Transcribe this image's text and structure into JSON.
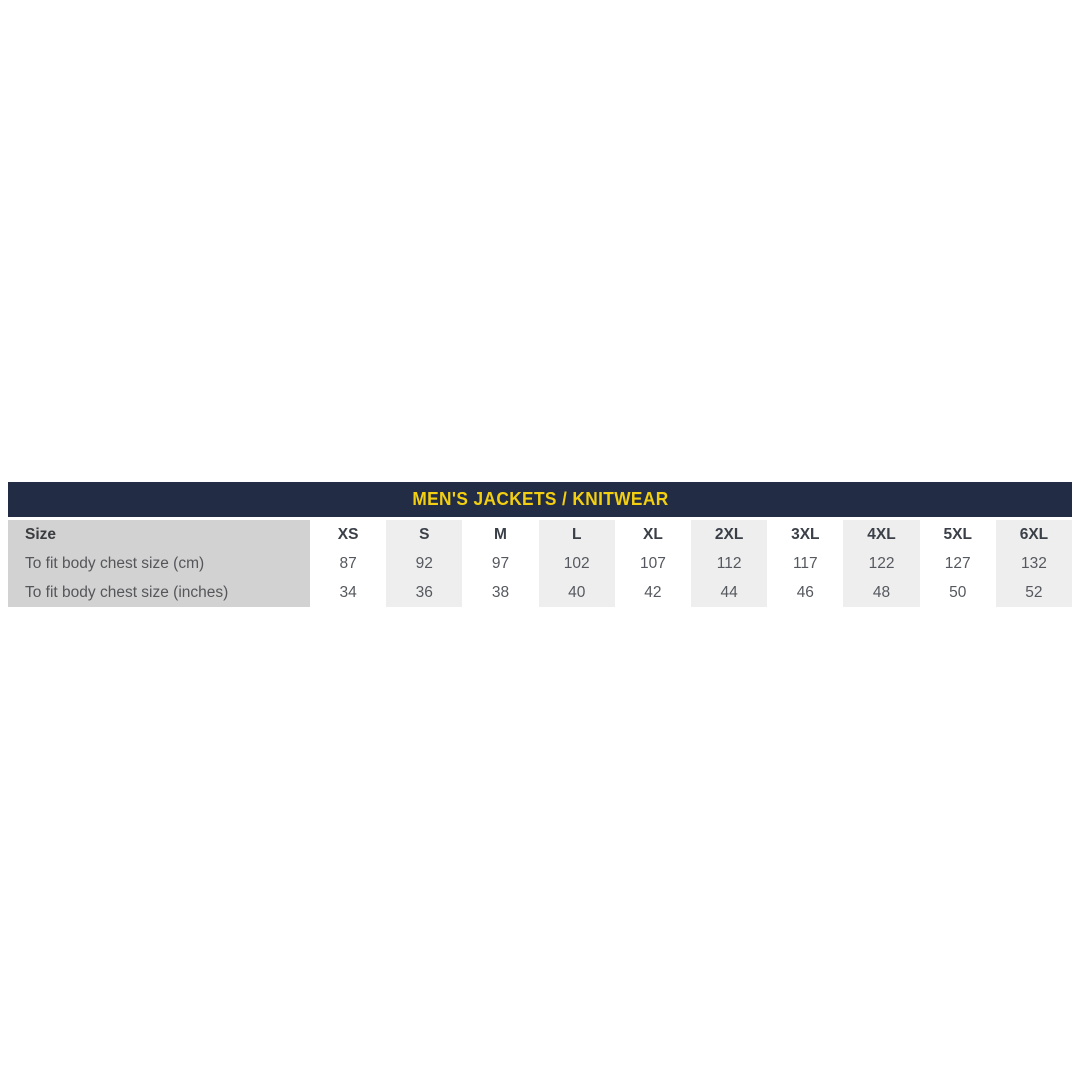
{
  "table": {
    "title": "MEN'S JACKETS / KNITWEAR",
    "corner_label": "Size",
    "columns": [
      "XS",
      "S",
      "M",
      "L",
      "XL",
      "2XL",
      "3XL",
      "4XL",
      "5XL",
      "6XL"
    ],
    "rows": [
      {
        "label": "To fit body chest size (cm)",
        "values": [
          "87",
          "92",
          "97",
          "102",
          "107",
          "112",
          "117",
          "122",
          "127",
          "132"
        ]
      },
      {
        "label": "To fit body chest size (inches)",
        "values": [
          "34",
          "36",
          "38",
          "40",
          "42",
          "44",
          "46",
          "48",
          "50",
          "52"
        ]
      }
    ],
    "colors": {
      "title_bar_bg": "#232c45",
      "title_text": "#f2cf10",
      "label_column_bg": "#d2d2d2",
      "alt_column_bg": "#eeeeee",
      "header_text": "#3a3f48",
      "value_text": "#55585e"
    }
  }
}
